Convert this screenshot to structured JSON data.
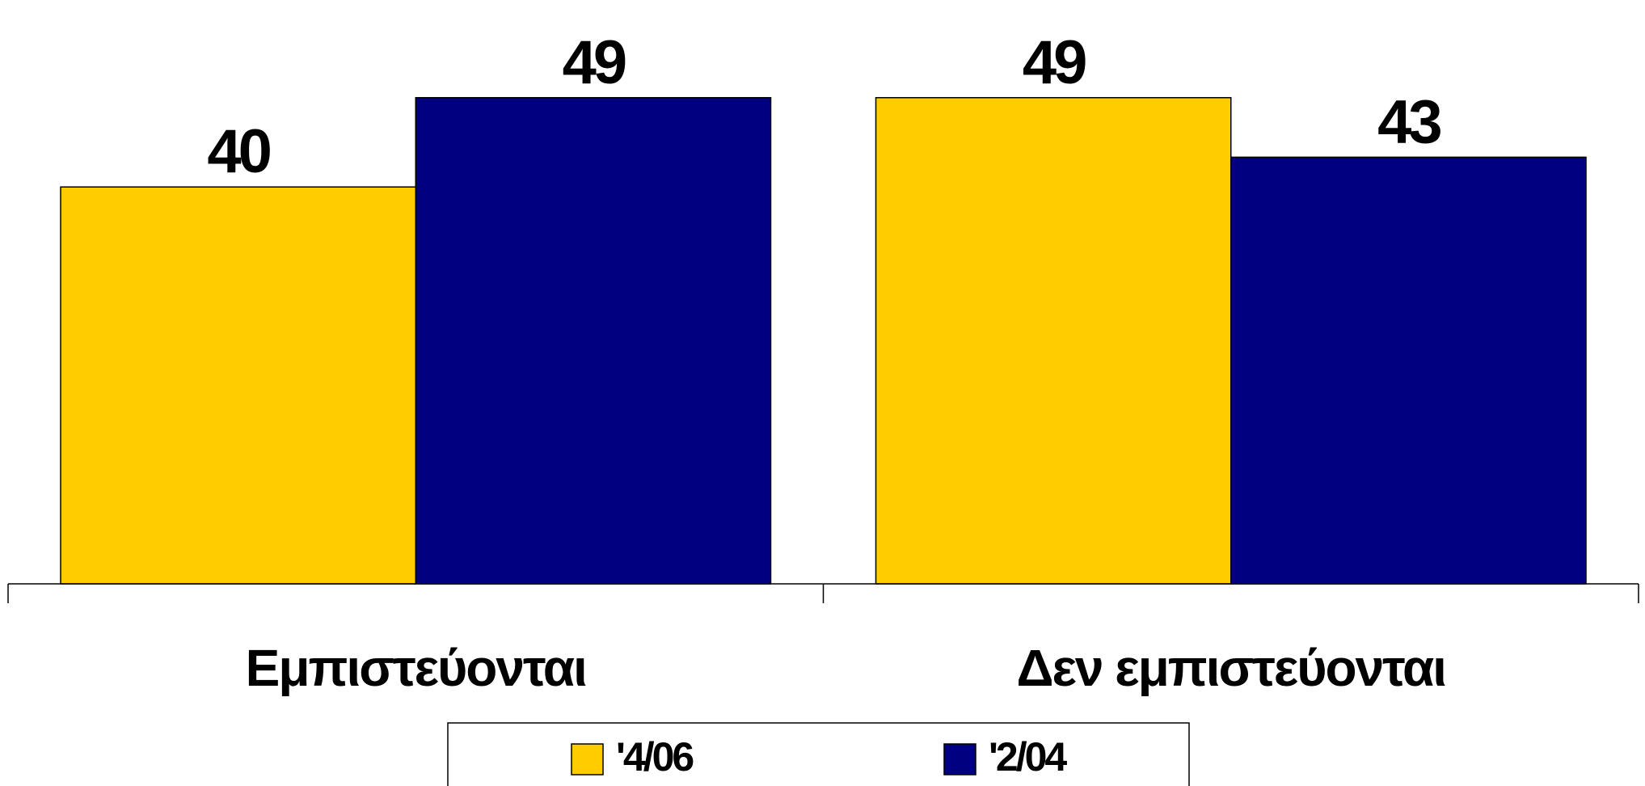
{
  "chart_data": {
    "type": "bar",
    "categories": [
      "Εμπιστεύονται",
      "Δεν εμπιστεύονται"
    ],
    "series": [
      {
        "name": "'4/06",
        "color": "#ffcc00",
        "values": [
          40,
          49
        ]
      },
      {
        "name": "'2/04",
        "color": "#000080",
        "values": [
          49,
          43
        ]
      }
    ],
    "legend": "bottom"
  }
}
